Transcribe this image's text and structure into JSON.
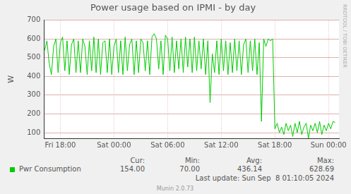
{
  "chart_data": {
    "type": "line",
    "title": "Power usage based on IPMI - by day",
    "y_label": "W",
    "x": [
      16.25,
      16.5,
      16.75,
      17,
      17.25,
      17.5,
      17.75,
      18,
      18.25,
      18.5,
      18.75,
      19,
      19.25,
      19.5,
      19.75,
      20,
      20.25,
      20.5,
      20.75,
      21,
      21.25,
      21.5,
      21.75,
      22,
      22.25,
      22.5,
      22.75,
      23,
      23.25,
      23.5,
      23.75,
      24,
      24.25,
      24.5,
      24.75,
      25,
      25.25,
      25.5,
      25.75,
      26,
      26.25,
      26.5,
      26.75,
      27,
      27.25,
      27.5,
      27.75,
      28,
      28.25,
      28.5,
      28.75,
      29,
      29.25,
      29.5,
      29.75,
      30,
      30.25,
      30.5,
      30.75,
      31,
      31.25,
      31.5,
      31.75,
      32,
      32.25,
      32.5,
      32.75,
      33,
      33.25,
      33.5,
      33.75,
      34,
      34.25,
      34.5,
      34.75,
      35,
      35.25,
      35.5,
      35.75,
      36,
      36.25,
      36.5,
      36.75,
      37,
      37.25,
      37.5,
      37.75,
      38,
      38.25,
      38.5,
      38.75,
      39,
      39.25,
      39.5,
      39.75,
      40,
      40.25,
      40.5,
      40.75,
      41,
      41.25,
      41.5,
      41.75,
      42,
      42.25,
      42.5,
      42.75,
      43,
      43.25,
      43.5,
      43.75,
      44,
      44.25,
      44.5,
      44.75,
      45,
      45.25,
      45.5,
      45.75,
      46,
      46.25,
      46.5,
      46.75,
      47,
      47.25,
      47.5,
      47.75,
      48,
      48.25,
      48.5,
      48.75
    ],
    "xlim": [
      16.17,
      49.17
    ],
    "xticks": [
      {
        "value": 18,
        "label": "Fri 18:00"
      },
      {
        "value": 24,
        "label": "Sat 00:00"
      },
      {
        "value": 30,
        "label": "Sat 06:00"
      },
      {
        "value": 36,
        "label": "Sat 12:00"
      },
      {
        "value": 42,
        "label": "Sat 18:00"
      },
      {
        "value": 48,
        "label": "Sun 00:00"
      }
    ],
    "ylim": [
      70,
      700
    ],
    "yticks": [
      100,
      200,
      300,
      400,
      500,
      600,
      700
    ],
    "grid": true,
    "series": [
      {
        "name": "Pwr Consumption",
        "color": "#00cc00",
        "values": [
          540,
          590,
          470,
          410,
          560,
          600,
          420,
          580,
          610,
          430,
          590,
          410,
          570,
          600,
          420,
          590,
          420,
          600,
          560,
          410,
          590,
          430,
          610,
          420,
          600,
          410,
          580,
          590,
          420,
          600,
          410,
          560,
          600,
          420,
          590,
          410,
          610,
          430,
          570,
          600,
          410,
          590,
          420,
          600,
          580,
          430,
          590,
          410,
          610,
          628,
          600,
          440,
          590,
          410,
          620,
          600,
          430,
          610,
          420,
          590,
          440,
          600,
          420,
          610,
          450,
          600,
          420,
          610,
          430,
          590,
          440,
          600,
          410,
          590,
          260,
          520,
          420,
          590,
          410,
          600,
          430,
          590,
          410,
          580,
          420,
          600,
          430,
          590,
          410,
          570,
          600,
          420,
          590,
          430,
          600,
          410,
          580,
          160,
          600,
          560,
          600,
          590,
          600,
          120,
          150,
          100,
          130,
          90,
          150,
          110,
          140,
          80,
          150,
          100,
          160,
          90,
          130,
          150,
          70,
          140,
          110,
          150,
          100,
          160,
          90,
          140,
          110,
          150,
          120,
          160,
          154
        ]
      }
    ],
    "stats_columns": [
      "Cur:",
      "Min:",
      "Avg:",
      "Max:"
    ],
    "stats": [
      {
        "value": 154,
        "label": "154.00"
      },
      {
        "value": 70,
        "label": "70.00"
      },
      {
        "value": 436.14,
        "label": "436.14"
      },
      {
        "value": 628.69,
        "label": "628.69"
      }
    ],
    "footer": "Last update: Sun Sep  8 01:10:05 2024",
    "credit": "Munin 2.0.73",
    "side_label": "RRDTOOL / TOBI OETIKER"
  }
}
